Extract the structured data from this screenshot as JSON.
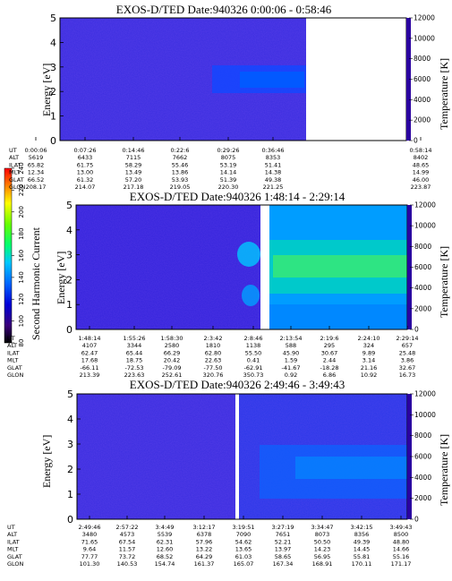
{
  "colorbar": {
    "label": "Second Harmonic Current",
    "ticks": [
      "80",
      "100",
      "120",
      "140",
      "160",
      "180",
      "200",
      "220",
      "240"
    ]
  },
  "chart_data": [
    {
      "type": "heatmap",
      "title": "EXOS-D/TED   Date:940326  0:00:06 - 0:58:46",
      "ylabel": "Energy [eV]",
      "y2label": "Temperature [K]",
      "ylim": [
        0,
        5
      ],
      "y2lim": [
        0,
        12000
      ],
      "yticks": [
        "0",
        "1",
        "2",
        "3",
        "4",
        "5"
      ],
      "y2ticks": [
        "0",
        "2000",
        "4000",
        "6000",
        "8000",
        "10000",
        "12000"
      ],
      "data_gap": "0:36:46 - 0:58:14",
      "enhanced_band": {
        "energy_range_eV": [
          2,
          3
        ],
        "from": "0:22:6"
      },
      "row_labels": [
        "UT",
        "ALT",
        "ILAT",
        "MLT",
        "GLAT",
        "GLON"
      ],
      "columns": [
        {
          "UT": "0:00:06",
          "ALT": "5619",
          "ILAT": "65.82",
          "MLT": "12.34",
          "GLAT": "66.52",
          "GLON": "208.17"
        },
        {
          "UT": "0:07:26",
          "ALT": "6433",
          "ILAT": "61.75",
          "MLT": "13.00",
          "GLAT": "61.32",
          "GLON": "214.07"
        },
        {
          "UT": "0:14:46",
          "ALT": "7115",
          "ILAT": "58.29",
          "MLT": "13.49",
          "GLAT": "57.20",
          "GLON": "217.18"
        },
        {
          "UT": "0:22:6",
          "ALT": "7662",
          "ILAT": "55.46",
          "MLT": "13.86",
          "GLAT": "53.93",
          "GLON": "219.05"
        },
        {
          "UT": "0:29:26",
          "ALT": "8075",
          "ILAT": "53.19",
          "MLT": "14.14",
          "GLAT": "51.39",
          "GLON": "220.30"
        },
        {
          "UT": "0:36:46",
          "ALT": "8353",
          "ILAT": "51.41",
          "MLT": "14.38",
          "GLAT": "49.38",
          "GLON": "221.25"
        },
        {
          "UT": "0:58:14",
          "ALT": "8402",
          "ILAT": "48.65",
          "MLT": "14.99",
          "GLAT": "46.00",
          "GLON": "223.87"
        }
      ]
    },
    {
      "type": "heatmap",
      "title": "EXOS-D/TED   Date:940326  1:48:14 - 2:29:14",
      "ylabel": "Energy [eV]",
      "y2label": "Temperature [K]",
      "ylim": [
        0,
        5
      ],
      "y2lim": [
        0,
        12000
      ],
      "yticks": [
        "0",
        "1",
        "2",
        "3",
        "4",
        "5"
      ],
      "y2ticks": [
        "0",
        "2000",
        "4000",
        "6000",
        "8000",
        "10000",
        "12000"
      ],
      "data_gap": "2:8:46 - 2:13:54",
      "row_labels": [
        "UT",
        "ALT",
        "ILAT",
        "MLT",
        "GLAT",
        "GLON"
      ],
      "columns": [
        {
          "UT": "1:48:14",
          "ALT": "4107",
          "ILAT": "62.47",
          "MLT": "17.68",
          "GLAT": "-66.11",
          "GLON": "213.39"
        },
        {
          "UT": "1:55:26",
          "ALT": "3344",
          "ILAT": "65.44",
          "MLT": "18.75",
          "GLAT": "-72.53",
          "GLON": "223.63"
        },
        {
          "UT": "1:58:30",
          "ALT": "2580",
          "ILAT": "66.29",
          "MLT": "20.42",
          "GLAT": "-79.09",
          "GLON": "252.61"
        },
        {
          "UT": "2:3:42",
          "ALT": "1810",
          "ILAT": "62.80",
          "MLT": "22.63",
          "GLAT": "-77.50",
          "GLON": "320.76"
        },
        {
          "UT": "2:8:46",
          "ALT": "1138",
          "ILAT": "55.50",
          "MLT": "0.41",
          "GLAT": "-62.91",
          "GLON": "350.73"
        },
        {
          "UT": "2:13:54",
          "ALT": "588",
          "ILAT": "45.90",
          "MLT": "1.59",
          "GLAT": "-41.67",
          "GLON": "0.92"
        },
        {
          "UT": "2:19:6",
          "ALT": "295",
          "ILAT": "30.67",
          "MLT": "2.44",
          "GLAT": "-18.28",
          "GLON": "6.86"
        },
        {
          "UT": "2:24:10",
          "ALT": "324",
          "ILAT": "9.89",
          "MLT": "3.14",
          "GLAT": "21.16",
          "GLON": "10.92"
        },
        {
          "UT": "2:29:14",
          "ALT": "657",
          "ILAT": "25.48",
          "MLT": "3.86",
          "GLAT": "32.67",
          "GLON": "16.73"
        }
      ]
    },
    {
      "type": "heatmap",
      "title": "EXOS-D/TED   Date:940326  2:49:46 - 3:49:43",
      "ylabel": "Energy [eV]",
      "y2label": "Temperature [K]",
      "ylim": [
        0,
        5
      ],
      "y2lim": [
        0,
        12000
      ],
      "yticks": [
        "0",
        "1",
        "2",
        "3",
        "4",
        "5"
      ],
      "y2ticks": [
        "0",
        "2000",
        "4000",
        "6000",
        "8000",
        "10000",
        "12000"
      ],
      "data_gap": "3:19:51",
      "row_labels": [
        "UT",
        "ALT",
        "ILAT",
        "MLT",
        "GLAT",
        "GLON"
      ],
      "columns": [
        {
          "UT": "2:49:46",
          "ALT": "3480",
          "ILAT": "71.65",
          "MLT": "9.64",
          "GLAT": "77.77",
          "GLON": "101.30"
        },
        {
          "UT": "2:57:22",
          "ALT": "4573",
          "ILAT": "67.54",
          "MLT": "11.57",
          "GLAT": "73.72",
          "GLON": "140.53"
        },
        {
          "UT": "3:4:49",
          "ALT": "5539",
          "ILAT": "62.31",
          "MLT": "12.60",
          "GLAT": "68.52",
          "GLON": "154.74"
        },
        {
          "UT": "3:12:17",
          "ALT": "6378",
          "ILAT": "57.96",
          "MLT": "13.22",
          "GLAT": "64.29",
          "GLON": "161.37"
        },
        {
          "UT": "3:19:51",
          "ALT": "7090",
          "ILAT": "54.62",
          "MLT": "13.65",
          "GLAT": "61.03",
          "GLON": "165.07"
        },
        {
          "UT": "3:27:19",
          "ALT": "7651",
          "ILAT": "52.21",
          "MLT": "13.97",
          "GLAT": "58.65",
          "GLON": "167.34"
        },
        {
          "UT": "3:34:47",
          "ALT": "8073",
          "ILAT": "50.50",
          "MLT": "14.23",
          "GLAT": "56.95",
          "GLON": "168.91"
        },
        {
          "UT": "3:42:15",
          "ALT": "8356",
          "ILAT": "49.39",
          "MLT": "14.45",
          "GLAT": "55.81",
          "GLON": "170.11"
        },
        {
          "UT": "3:49:43",
          "ALT": "8500",
          "ILAT": "48.80",
          "MLT": "14.66",
          "GLAT": "55.16",
          "GLON": "171.17"
        }
      ]
    }
  ]
}
